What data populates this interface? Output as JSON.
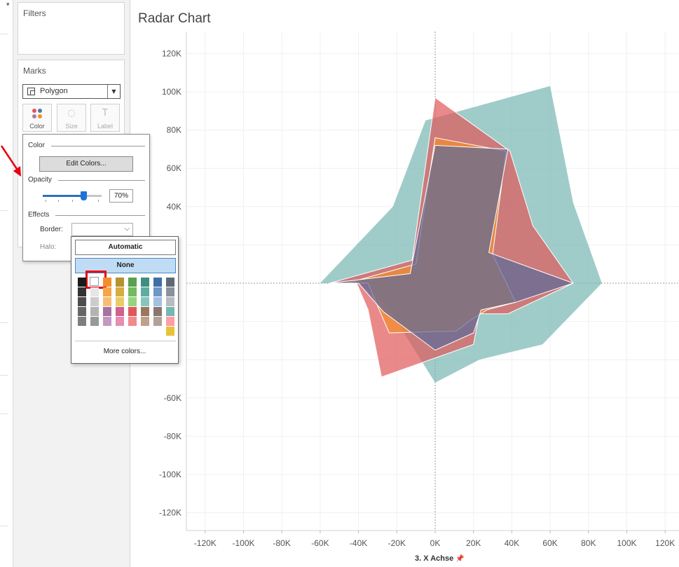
{
  "filters_card": {
    "title": "Filters"
  },
  "marks_card": {
    "title": "Marks",
    "mark_type": "Polygon",
    "buttons": [
      "Color",
      "Size",
      "Label"
    ]
  },
  "color_popup": {
    "color_heading": "Color",
    "edit_colors": "Edit Colors...",
    "opacity_heading": "Opacity",
    "opacity_value": "70%",
    "opacity_level": 0.7,
    "effects_heading": "Effects",
    "border_label": "Border:",
    "halo_label": "Halo:"
  },
  "border_popup": {
    "automatic": "Automatic",
    "none": "None",
    "more_colors": "More colors...",
    "selected_swatch": "white"
  },
  "chart_title": "Radar Chart",
  "chart_data": {
    "type": "area",
    "title": "Radar Chart",
    "xlabel": "3. X Achse",
    "ylabel": "",
    "xlim": [
      -130000,
      130000
    ],
    "ylim": [
      -130000,
      130000
    ],
    "x_ticks": [
      "-120K",
      "-100K",
      "-80K",
      "-60K",
      "-40K",
      "-20K",
      "0K",
      "20K",
      "40K",
      "60K",
      "80K",
      "100K",
      "120K"
    ],
    "y_ticks": [
      "120K",
      "100K",
      "80K",
      "60K",
      "40K",
      "-60K",
      "-80K",
      "-100K",
      "-120K"
    ],
    "y_tick_values": [
      120000,
      100000,
      80000,
      60000,
      40000,
      -60000,
      -80000,
      -100000,
      -120000
    ],
    "grid": true,
    "colors": [
      "#76b7b2",
      "#e15759",
      "#f28e2b",
      "#5b6b9a"
    ],
    "series": [
      {
        "points": [
          [
            -60000,
            0
          ],
          [
            -22000,
            40000
          ],
          [
            -5000,
            85000
          ],
          [
            60000,
            103000
          ],
          [
            72000,
            42000
          ],
          [
            87000,
            0
          ],
          [
            56000,
            -32000
          ],
          [
            23000,
            -40000
          ],
          [
            0,
            -52000
          ],
          [
            -25000,
            -12000
          ],
          [
            -40000,
            0
          ]
        ]
      },
      {
        "points": [
          [
            -55000,
            0
          ],
          [
            -12000,
            12000
          ],
          [
            0,
            97000
          ],
          [
            39000,
            69000
          ],
          [
            51000,
            30000
          ],
          [
            72000,
            0
          ],
          [
            38000,
            -16000
          ],
          [
            23000,
            -16000
          ],
          [
            20000,
            -32000
          ],
          [
            -28000,
            -49000
          ],
          [
            -35000,
            -14000
          ],
          [
            -41000,
            0
          ]
        ]
      },
      {
        "points": [
          [
            -46000,
            0
          ],
          [
            -10000,
            10000
          ],
          [
            0,
            76000
          ],
          [
            37000,
            69000
          ],
          [
            30000,
            15000
          ],
          [
            42000,
            -10000
          ],
          [
            27000,
            -14000
          ],
          [
            19000,
            -19000
          ],
          [
            11000,
            -25000
          ],
          [
            -24000,
            -26000
          ],
          [
            -30000,
            -12000
          ],
          [
            -35000,
            0
          ]
        ]
      },
      {
        "points": [
          [
            -55000,
            0
          ],
          [
            -13000,
            5000
          ],
          [
            0,
            72000
          ],
          [
            38000,
            70000
          ],
          [
            28000,
            16000
          ],
          [
            72000,
            0
          ],
          [
            42000,
            -10000
          ],
          [
            24000,
            -14000
          ],
          [
            20000,
            -26000
          ],
          [
            0,
            -35000
          ],
          [
            -27000,
            -15000
          ],
          [
            -40000,
            0
          ]
        ]
      }
    ]
  }
}
